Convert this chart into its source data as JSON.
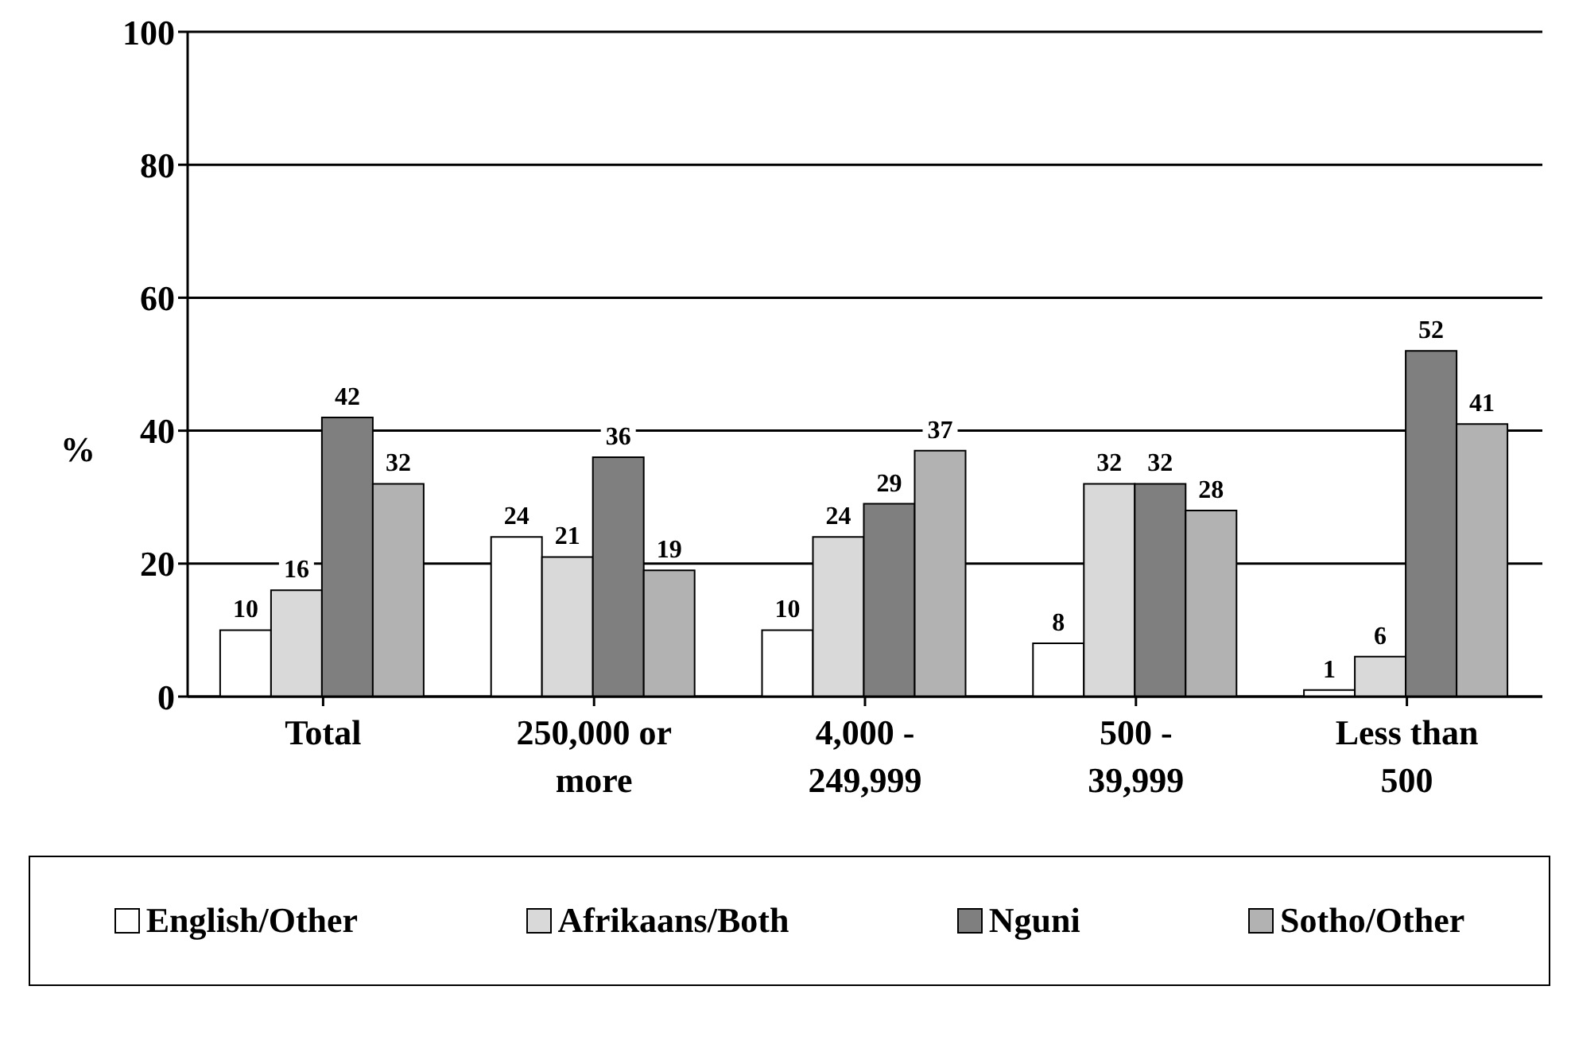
{
  "chart_data": {
    "type": "bar",
    "ylabel": "%",
    "categories": [
      "Total",
      "250,000 or more",
      "4,000 - 249,999",
      "500 - 39,999",
      "Less than 500"
    ],
    "series": [
      {
        "name": "English/Other",
        "color": "#ffffff",
        "values": [
          10,
          24,
          10,
          8,
          1
        ]
      },
      {
        "name": "Afrikaans/Both",
        "color": "#d9d9d9",
        "values": [
          16,
          21,
          24,
          32,
          6
        ]
      },
      {
        "name": "Nguni",
        "color": "#7f7f7f",
        "values": [
          42,
          36,
          29,
          32,
          52
        ]
      },
      {
        "name": "Sotho/Other",
        "color": "#b2b2b2",
        "values": [
          32,
          19,
          37,
          28,
          41
        ]
      }
    ],
    "ylim": [
      0,
      100
    ],
    "yticks": [
      0,
      20,
      40,
      60,
      80,
      100
    ],
    "grid": "y",
    "legend": "bottom",
    "data_labels": true
  }
}
